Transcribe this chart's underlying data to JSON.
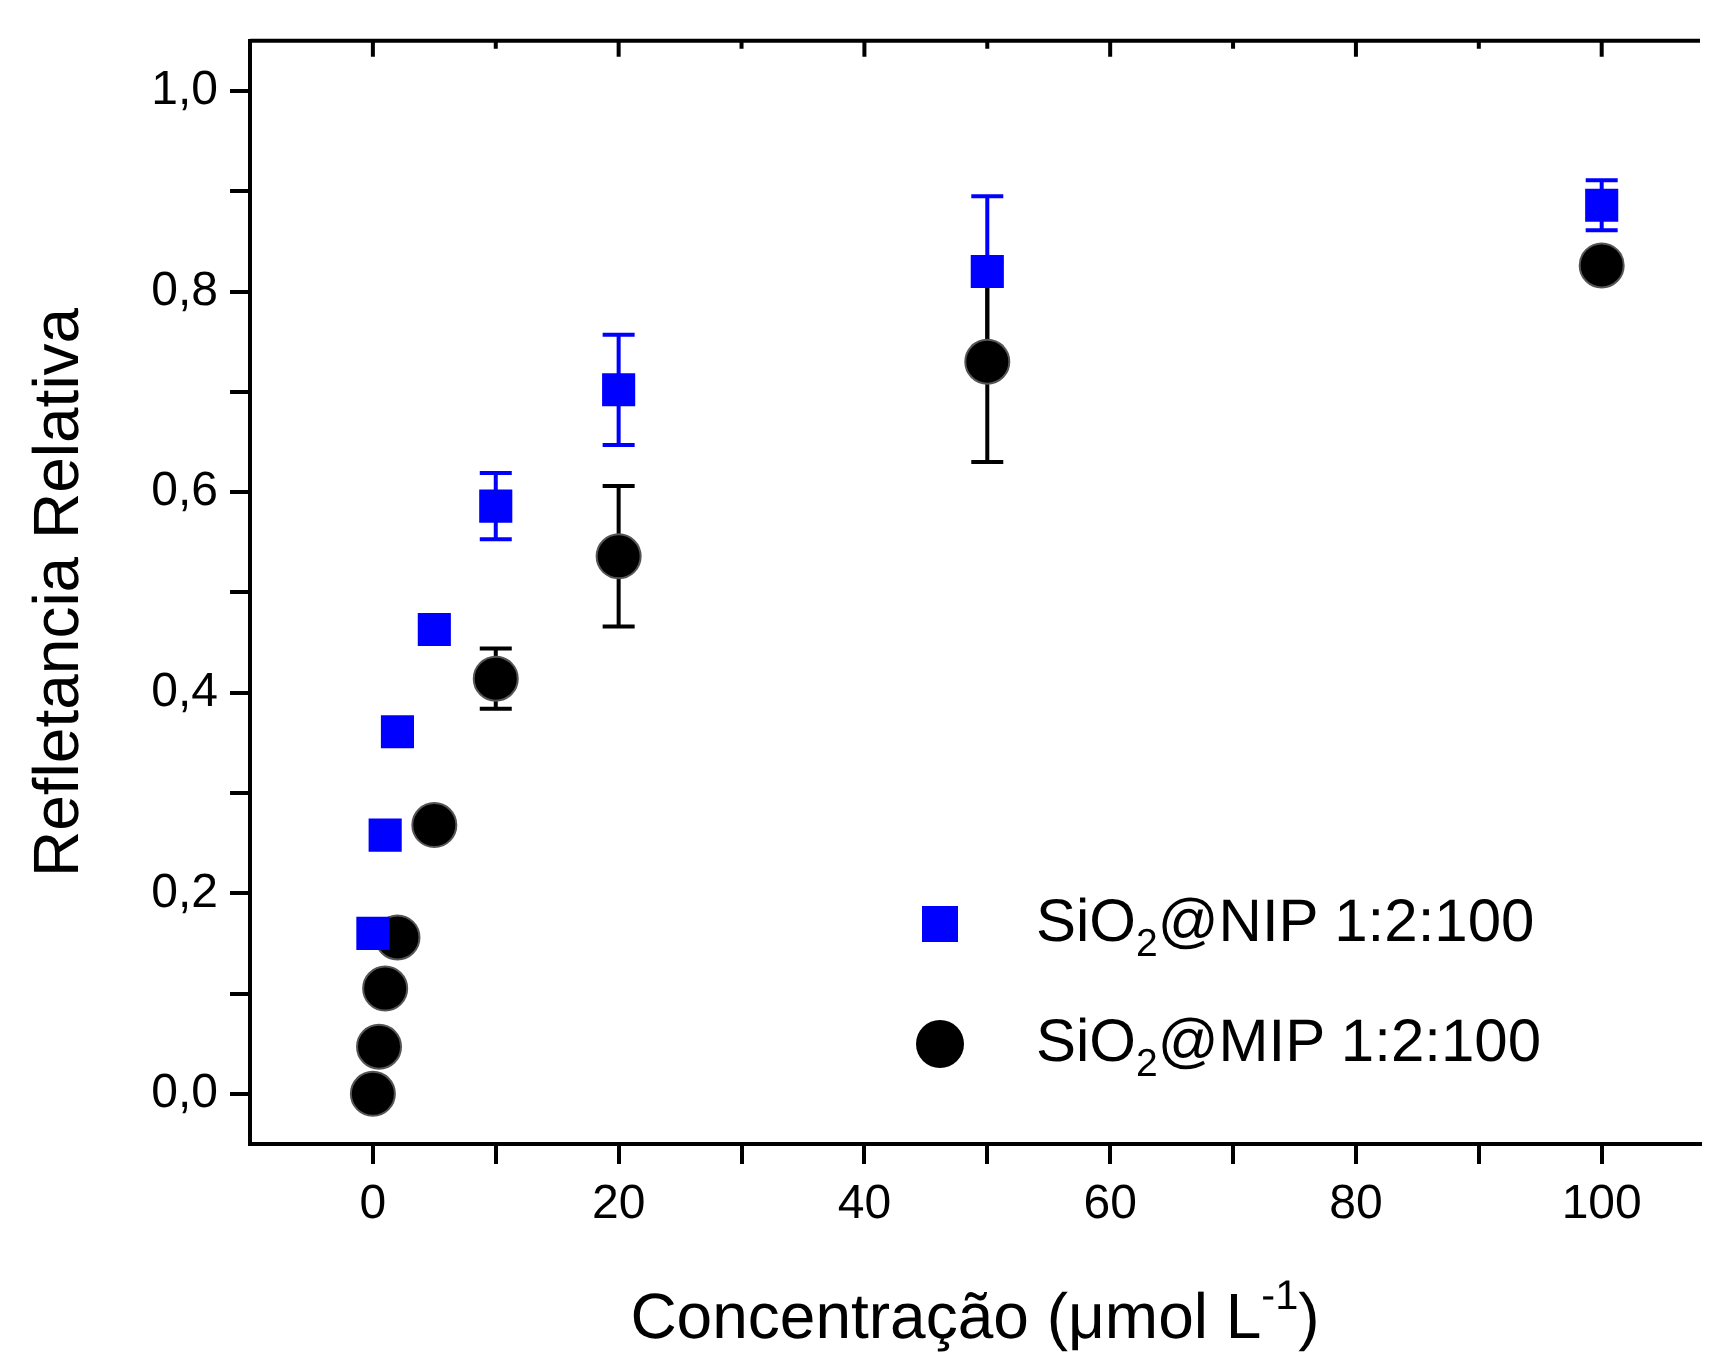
{
  "chart_data": {
    "type": "scatter",
    "xlabel": "Concentração (μmol L$^{-1}$)",
    "ylabel": "Refletancia Relativa",
    "xlim": [
      -10,
      108
    ],
    "ylim": [
      -0.05,
      1.05
    ],
    "xticks": [
      0,
      {
        "value": 10,
        "label": null
      },
      20,
      {
        "value": 30,
        "label": null
      },
      40,
      {
        "value": 50,
        "label": null
      },
      60,
      {
        "value": 70,
        "label": null
      },
      80,
      {
        "value": 90,
        "label": null
      },
      100
    ],
    "yticks": [
      {
        "value": 0,
        "label": "0,0"
      },
      {
        "value": 0.1,
        "label": null
      },
      {
        "value": 0.2,
        "label": "0,2"
      },
      {
        "value": 0.3,
        "label": null
      },
      {
        "value": 0.4,
        "label": "0,4"
      },
      {
        "value": 0.5,
        "label": null
      },
      {
        "value": 0.6,
        "label": "0,6"
      },
      {
        "value": 0.7,
        "label": null
      },
      {
        "value": 0.8,
        "label": "0,8"
      },
      {
        "value": 0.9,
        "label": null
      },
      {
        "value": 1.0,
        "label": "1,0"
      }
    ],
    "grid": false,
    "legend": "bottom right",
    "series": [
      {
        "name": "SiO$_{2}$@NIP 1:2:100",
        "color": "#0000ff",
        "marker": "square",
        "x": [
          0,
          1,
          2,
          5,
          10,
          20,
          50,
          100
        ],
        "values": [
          0.16,
          0.258,
          0.361,
          0.463,
          0.586,
          0.702,
          0.82,
          0.886
        ],
        "errors": [
          null,
          null,
          null,
          null,
          0.033,
          0.055,
          0.075,
          0.025
        ]
      },
      {
        "name": "SiO$_{2}$@MIP 1:2:100",
        "color": "#000000",
        "marker": "circle",
        "x": [
          0,
          0.5,
          1,
          2,
          5,
          10,
          20,
          50,
          100
        ],
        "values": [
          0.0,
          0.047,
          0.105,
          0.156,
          0.268,
          0.414,
          0.536,
          0.73,
          0.826
        ],
        "errors": [
          null,
          null,
          null,
          null,
          null,
          0.03,
          0.07,
          0.1,
          null
        ]
      }
    ]
  }
}
